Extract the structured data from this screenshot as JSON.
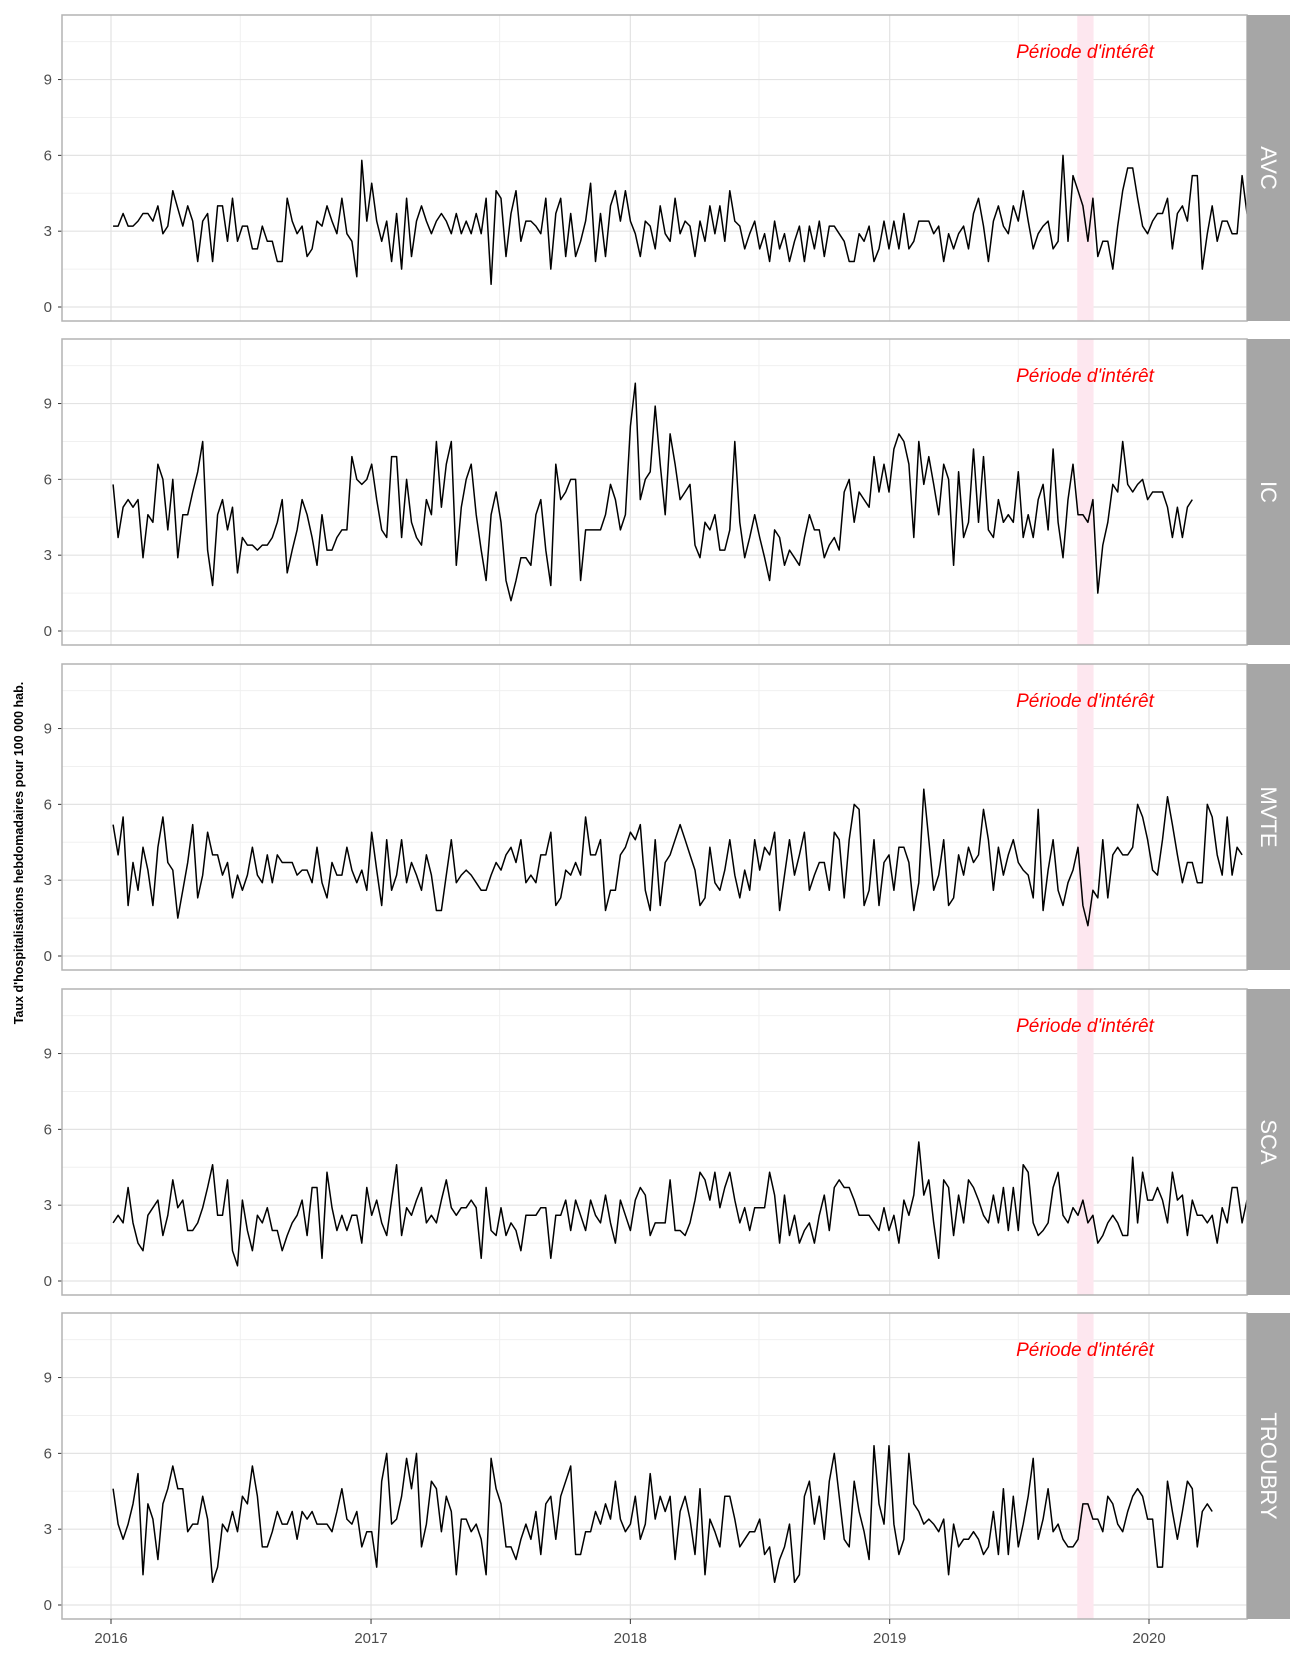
{
  "chart_data": {
    "type": "line",
    "ylabel": "Taux d'hospitalisations hebdomadaires pour 100 000 hab.",
    "xlabel": "",
    "x_ticks": [
      "2016",
      "2017",
      "2018",
      "2019",
      "2020"
    ],
    "y_ticks": [
      "0",
      "3",
      "6",
      "9"
    ],
    "ylim": [
      0,
      11
    ],
    "x_range": [
      "2016-01-04",
      "2020-03-09"
    ],
    "x_interval": "weekly",
    "grid": true,
    "legend": "none",
    "annotation": "Période d'intérêt",
    "highlight_period": [
      "2019-09-22",
      "2019-10-15"
    ],
    "highlight_color": "#fde7ef",
    "line_color": "#000000",
    "strip_color": "#a6a6a6",
    "series": [
      {
        "name": "AVC",
        "values": [
          3.2,
          3.2,
          3.7,
          3.2,
          3.2,
          3.4,
          3.7,
          3.7,
          3.4,
          4.0,
          2.9,
          3.2,
          4.6,
          3.9,
          3.2,
          4.0,
          3.4,
          1.8,
          3.4,
          3.7,
          1.8,
          4.0,
          4.0,
          2.6,
          4.3,
          2.6,
          3.2,
          3.2,
          2.3,
          2.3,
          3.2,
          2.6,
          2.6,
          1.8,
          1.8,
          4.3,
          3.4,
          2.9,
          3.2,
          2.0,
          2.3,
          3.4,
          3.2,
          4.0,
          3.4,
          2.9,
          4.3,
          2.9,
          2.6,
          1.2,
          5.8,
          3.4,
          4.9,
          3.4,
          2.6,
          3.4,
          1.8,
          3.7,
          1.5,
          4.3,
          2.0,
          3.4,
          4.0,
          3.4,
          2.9,
          3.4,
          3.7,
          3.4,
          2.9,
          3.7,
          2.9,
          3.4,
          2.9,
          3.7,
          2.9,
          4.3,
          0.9,
          4.6,
          4.3,
          2.0,
          3.7,
          4.6,
          2.6,
          3.4,
          3.4,
          3.2,
          2.9,
          4.3,
          1.5,
          3.7,
          4.3,
          2.0,
          3.7,
          2.0,
          2.6,
          3.4,
          4.9,
          1.8,
          3.7,
          2.0,
          4.0,
          4.6,
          3.4,
          4.6,
          3.4,
          2.9,
          2.0,
          3.4,
          3.2,
          2.3,
          4.0,
          2.9,
          2.6,
          4.3,
          2.9,
          3.4,
          3.2,
          2.0,
          3.4,
          2.6,
          4.0,
          2.9,
          4.0,
          2.6,
          4.6,
          3.4,
          3.2,
          2.3,
          2.9,
          3.4,
          2.3,
          2.9,
          1.8,
          3.4,
          2.3,
          2.9,
          1.8,
          2.6,
          3.2,
          1.8,
          3.2,
          2.3,
          3.4,
          2.0,
          3.2,
          3.2,
          2.9,
          2.6,
          1.8,
          1.8,
          2.9,
          2.6,
          3.2,
          1.8,
          2.3,
          3.4,
          2.3,
          3.4,
          2.3,
          3.7,
          2.3,
          2.6,
          3.4,
          3.4,
          3.4,
          2.9,
          3.2,
          1.8,
          2.9,
          2.3,
          2.9,
          3.2,
          2.3,
          3.7,
          4.3,
          3.2,
          1.8,
          3.4,
          4.0,
          3.2,
          2.9,
          4.0,
          3.4,
          4.6,
          3.4,
          2.3,
          2.9,
          3.2,
          3.4,
          2.3,
          2.6,
          6.0,
          2.6,
          5.2,
          4.6,
          4.0,
          2.6,
          4.3,
          2.0,
          2.6,
          2.6,
          1.5,
          3.2,
          4.6,
          5.5,
          5.5,
          4.3,
          3.2,
          2.9,
          3.4,
          3.7,
          3.7,
          4.3,
          2.3,
          3.7,
          4.0,
          3.4,
          5.2,
          5.2,
          1.5,
          2.9,
          4.0,
          2.6,
          3.4,
          3.4,
          2.9,
          2.9,
          5.2,
          3.7,
          2.9,
          3.7,
          5.5,
          3.4
        ]
      },
      {
        "name": "IC",
        "values": [
          5.8,
          3.7,
          4.9,
          5.2,
          4.9,
          5.2,
          2.9,
          4.6,
          4.3,
          6.6,
          6.0,
          4.0,
          6.0,
          2.9,
          4.6,
          4.6,
          5.5,
          6.3,
          7.5,
          3.2,
          1.8,
          4.6,
          5.2,
          4.0,
          4.9,
          2.3,
          3.7,
          3.4,
          3.4,
          3.2,
          3.4,
          3.4,
          3.7,
          4.3,
          5.2,
          2.3,
          3.2,
          4.0,
          5.2,
          4.6,
          3.7,
          2.6,
          4.6,
          3.2,
          3.2,
          3.7,
          4.0,
          4.0,
          6.9,
          6.0,
          5.8,
          6.0,
          6.6,
          5.2,
          4.0,
          3.7,
          6.9,
          6.9,
          3.7,
          6.0,
          4.3,
          3.7,
          3.4,
          5.2,
          4.6,
          7.5,
          4.9,
          6.6,
          7.5,
          2.6,
          4.9,
          6.0,
          6.6,
          4.6,
          3.2,
          2.0,
          4.6,
          5.5,
          4.3,
          2.0,
          1.2,
          2.0,
          2.9,
          2.9,
          2.6,
          4.6,
          5.2,
          3.2,
          1.8,
          6.6,
          5.2,
          5.5,
          6.0,
          6.0,
          2.0,
          4.0,
          4.0,
          4.0,
          4.0,
          4.6,
          5.8,
          5.2,
          4.0,
          4.6,
          8.1,
          9.8,
          5.2,
          6.0,
          6.3,
          8.9,
          6.6,
          4.6,
          7.8,
          6.6,
          5.2,
          5.5,
          5.8,
          3.4,
          2.9,
          4.3,
          4.0,
          4.6,
          3.2,
          3.2,
          4.0,
          7.5,
          4.3,
          2.9,
          3.7,
          4.6,
          3.7,
          2.9,
          2.0,
          4.0,
          3.7,
          2.6,
          3.2,
          2.9,
          2.6,
          3.7,
          4.6,
          4.0,
          4.0,
          2.9,
          3.4,
          3.7,
          3.2,
          5.5,
          6.0,
          4.3,
          5.5,
          5.2,
          4.9,
          6.9,
          5.5,
          6.6,
          5.5,
          7.2,
          7.8,
          7.5,
          6.6,
          3.7,
          7.5,
          5.8,
          6.9,
          5.8,
          4.6,
          6.6,
          6.0,
          2.6,
          6.3,
          3.7,
          4.3,
          7.2,
          4.3,
          6.9,
          4.0,
          3.7,
          5.2,
          4.3,
          4.6,
          4.3,
          6.3,
          3.7,
          4.6,
          3.7,
          5.2,
          5.8,
          4.0,
          7.2,
          4.3,
          2.9,
          5.2,
          6.6,
          4.6,
          4.6,
          4.3,
          5.2,
          1.5,
          3.4,
          4.3,
          5.8,
          5.5,
          7.5,
          5.8,
          5.5,
          5.8,
          6.0,
          5.2,
          5.5,
          5.5,
          5.5,
          4.9,
          3.7,
          4.9,
          3.7,
          4.9,
          5.2
        ]
      },
      {
        "name": "MVTE",
        "values": [
          5.2,
          4.0,
          5.5,
          2.0,
          3.7,
          2.6,
          4.3,
          3.4,
          2.0,
          4.3,
          5.5,
          3.7,
          3.4,
          1.5,
          2.6,
          3.7,
          5.2,
          2.3,
          3.2,
          4.9,
          4.0,
          4.0,
          3.2,
          3.7,
          2.3,
          3.2,
          2.6,
          3.2,
          4.3,
          3.2,
          2.9,
          4.0,
          2.9,
          4.0,
          3.7,
          3.7,
          3.7,
          3.2,
          3.4,
          3.4,
          2.9,
          4.3,
          2.9,
          2.3,
          3.7,
          3.2,
          3.2,
          4.3,
          3.4,
          2.9,
          3.4,
          2.6,
          4.9,
          3.4,
          2.0,
          4.6,
          2.6,
          3.2,
          4.6,
          2.9,
          3.7,
          3.2,
          2.6,
          4.0,
          3.2,
          1.8,
          1.8,
          3.2,
          4.6,
          2.9,
          3.2,
          3.4,
          3.2,
          2.9,
          2.6,
          2.6,
          3.2,
          3.7,
          3.4,
          4.0,
          4.3,
          3.7,
          4.6,
          2.9,
          3.2,
          2.9,
          4.0,
          4.0,
          4.9,
          2.0,
          2.3,
          3.4,
          3.2,
          3.7,
          3.2,
          5.5,
          4.0,
          4.0,
          4.6,
          1.8,
          2.6,
          2.6,
          4.0,
          4.3,
          4.9,
          4.6,
          5.2,
          2.6,
          1.8,
          4.6,
          2.0,
          3.7,
          4.0,
          4.6,
          5.2,
          4.6,
          4.0,
          3.4,
          2.0,
          2.3,
          4.3,
          2.9,
          2.6,
          3.4,
          4.6,
          3.2,
          2.3,
          3.4,
          2.6,
          4.6,
          3.4,
          4.3,
          4.0,
          4.9,
          1.8,
          3.2,
          4.6,
          3.2,
          4.0,
          4.9,
          2.6,
          3.2,
          3.7,
          3.7,
          2.6,
          4.9,
          4.6,
          2.3,
          4.6,
          6.0,
          5.8,
          2.0,
          2.6,
          4.6,
          2.0,
          3.7,
          4.0,
          2.6,
          4.3,
          4.3,
          3.7,
          1.8,
          2.9,
          6.6,
          4.6,
          2.6,
          3.2,
          4.6,
          2.0,
          2.3,
          4.0,
          3.2,
          4.3,
          3.7,
          4.0,
          5.8,
          4.6,
          2.6,
          4.3,
          3.2,
          4.0,
          4.6,
          3.7,
          3.4,
          3.2,
          2.3,
          5.8,
          1.8,
          3.4,
          4.6,
          2.6,
          2.0,
          2.9,
          3.4,
          4.3,
          2.0,
          1.2,
          2.6,
          2.3,
          4.6,
          2.3,
          4.0,
          4.3,
          4.0,
          4.0,
          4.3,
          6.0,
          5.5,
          4.6,
          3.4,
          3.2,
          4.6,
          6.3,
          5.2,
          4.0,
          2.9,
          3.7,
          3.7,
          2.9,
          2.9,
          6.0,
          5.5,
          4.0,
          3.2,
          5.5,
          3.2,
          4.3,
          4.0
        ]
      },
      {
        "name": "SCA",
        "values": [
          2.3,
          2.6,
          2.3,
          3.7,
          2.3,
          1.5,
          1.2,
          2.6,
          2.9,
          3.2,
          1.8,
          2.6,
          4.0,
          2.9,
          3.2,
          2.0,
          2.0,
          2.3,
          2.9,
          3.7,
          4.6,
          2.6,
          2.6,
          4.0,
          1.2,
          0.6,
          3.2,
          2.0,
          1.2,
          2.6,
          2.3,
          2.9,
          2.0,
          2.0,
          1.2,
          1.8,
          2.3,
          2.6,
          3.2,
          1.8,
          3.7,
          3.7,
          0.9,
          4.3,
          2.9,
          2.0,
          2.6,
          2.0,
          2.6,
          2.6,
          1.5,
          3.7,
          2.6,
          3.2,
          2.3,
          1.8,
          3.2,
          4.6,
          1.8,
          2.9,
          2.6,
          3.2,
          3.7,
          2.3,
          2.6,
          2.3,
          3.2,
          4.0,
          2.9,
          2.6,
          2.9,
          2.9,
          3.2,
          2.9,
          0.9,
          3.7,
          2.0,
          1.8,
          2.9,
          1.8,
          2.3,
          2.0,
          1.2,
          2.6,
          2.6,
          2.6,
          2.9,
          2.9,
          0.9,
          2.6,
          2.6,
          3.2,
          2.0,
          3.2,
          2.6,
          2.0,
          3.2,
          2.6,
          2.3,
          3.4,
          2.3,
          1.5,
          3.2,
          2.6,
          2.0,
          3.2,
          3.7,
          3.4,
          1.8,
          2.3,
          2.3,
          2.3,
          4.0,
          2.0,
          2.0,
          1.8,
          2.3,
          3.2,
          4.3,
          4.0,
          3.2,
          4.3,
          2.9,
          3.7,
          4.3,
          3.2,
          2.3,
          2.9,
          2.0,
          2.9,
          2.9,
          2.9,
          4.3,
          3.4,
          1.5,
          3.4,
          1.8,
          2.6,
          1.5,
          2.0,
          2.3,
          1.5,
          2.6,
          3.4,
          2.0,
          3.7,
          4.0,
          3.7,
          3.7,
          3.2,
          2.6,
          2.6,
          2.6,
          2.3,
          2.0,
          2.9,
          2.0,
          2.6,
          1.5,
          3.2,
          2.6,
          3.4,
          5.5,
          3.4,
          4.0,
          2.3,
          0.9,
          4.0,
          3.7,
          1.8,
          3.4,
          2.3,
          4.0,
          3.7,
          3.2,
          2.6,
          2.3,
          3.4,
          2.3,
          3.7,
          2.0,
          3.7,
          2.0,
          4.6,
          4.3,
          2.3,
          1.8,
          2.0,
          2.3,
          3.7,
          4.3,
          2.6,
          2.3,
          2.9,
          2.6,
          3.2,
          2.3,
          2.6,
          1.5,
          1.8,
          2.3,
          2.6,
          2.3,
          1.8,
          1.8,
          4.9,
          2.3,
          4.3,
          3.2,
          3.2,
          3.7,
          3.2,
          2.3,
          4.3,
          3.2,
          3.4,
          1.8,
          3.2,
          2.6,
          2.6,
          2.3,
          2.6,
          1.5,
          2.9,
          2.3,
          3.7,
          3.7,
          2.3,
          3.2,
          3.2,
          2.0,
          2.3,
          2.0,
          2.9,
          2.0
        ]
      },
      {
        "name": "TROUBRY",
        "values": [
          4.6,
          3.2,
          2.6,
          3.2,
          4.0,
          5.2,
          1.2,
          4.0,
          3.4,
          1.8,
          4.0,
          4.6,
          5.5,
          4.6,
          4.6,
          2.9,
          3.2,
          3.2,
          4.3,
          3.4,
          0.9,
          1.5,
          3.2,
          2.9,
          3.7,
          2.9,
          4.3,
          4.0,
          5.5,
          4.3,
          2.3,
          2.3,
          2.9,
          3.7,
          3.2,
          3.2,
          3.7,
          2.6,
          3.7,
          3.4,
          3.7,
          3.2,
          3.2,
          3.2,
          2.9,
          3.7,
          4.6,
          3.4,
          3.2,
          3.7,
          2.3,
          2.9,
          2.9,
          1.5,
          4.9,
          6.0,
          3.2,
          3.4,
          4.3,
          5.8,
          4.6,
          6.0,
          2.3,
          3.2,
          4.9,
          4.6,
          2.9,
          4.3,
          3.7,
          1.2,
          3.4,
          3.4,
          2.9,
          3.2,
          2.6,
          1.2,
          5.8,
          4.6,
          4.0,
          2.3,
          2.3,
          1.8,
          2.6,
          3.2,
          2.6,
          3.7,
          2.0,
          4.0,
          4.3,
          2.6,
          4.3,
          4.9,
          5.5,
          2.0,
          2.0,
          2.9,
          2.9,
          3.7,
          3.2,
          4.0,
          3.4,
          4.9,
          3.4,
          2.9,
          3.2,
          4.3,
          2.6,
          3.2,
          5.2,
          3.4,
          4.3,
          3.7,
          4.3,
          1.8,
          3.7,
          4.3,
          3.4,
          2.0,
          4.6,
          1.2,
          3.4,
          2.9,
          2.3,
          4.3,
          4.3,
          3.4,
          2.3,
          2.6,
          2.9,
          2.9,
          3.4,
          2.0,
          2.3,
          0.9,
          1.8,
          2.3,
          3.2,
          0.9,
          1.2,
          4.3,
          4.9,
          3.2,
          4.3,
          2.6,
          4.9,
          6.0,
          4.3,
          2.6,
          2.3,
          4.9,
          3.7,
          2.9,
          1.8,
          6.3,
          4.0,
          3.2,
          6.3,
          3.2,
          2.0,
          2.6,
          6.0,
          4.0,
          3.7,
          3.2,
          3.4,
          3.2,
          2.9,
          3.4,
          1.2,
          3.2,
          2.3,
          2.6,
          2.6,
          2.9,
          2.6,
          2.0,
          2.3,
          3.7,
          2.0,
          4.6,
          2.0,
          4.3,
          2.3,
          3.2,
          4.3,
          5.8,
          2.6,
          3.4,
          4.6,
          2.9,
          3.2,
          2.6,
          2.3,
          2.3,
          2.6,
          4.0,
          4.0,
          3.4,
          3.4,
          2.9,
          4.3,
          4.0,
          3.2,
          2.9,
          3.7,
          4.3,
          4.6,
          4.3,
          3.4,
          3.4,
          1.5,
          1.5,
          4.9,
          3.7,
          2.6,
          3.7,
          4.9,
          4.6,
          2.3,
          3.7,
          4.0,
          3.7
        ]
      }
    ]
  }
}
